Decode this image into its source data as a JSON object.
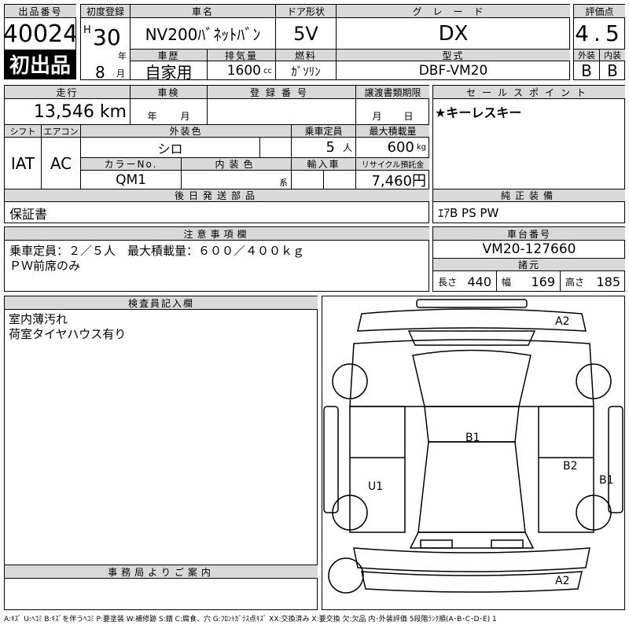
{
  "lot": {
    "label": "出品番号",
    "number": "40024",
    "badge": "初出品"
  },
  "reg": {
    "label": "初度登録",
    "era": "H",
    "year": "30",
    "year_unit": "年",
    "month": "8",
    "month_unit": "月"
  },
  "car_name": {
    "label": "車名",
    "value": "NV200ﾊﾞﾈｯﾄﾊﾞﾝ"
  },
  "door": {
    "label": "ドア形状",
    "value": "5V"
  },
  "grade": {
    "label": "グレード",
    "value": "DX"
  },
  "history": {
    "label": "車歴",
    "value": "自家用"
  },
  "displacement": {
    "label": "排気量",
    "value": "1600",
    "unit": "cc"
  },
  "fuel": {
    "label": "燃料",
    "value": "ｶﾞｿﾘﾝ"
  },
  "model": {
    "label": "型式",
    "value": "DBF-VM20"
  },
  "score": {
    "label": "評価点",
    "value": "4.5",
    "ext_label": "外装",
    "int_label": "内装",
    "ext": "B",
    "int": "B"
  },
  "mileage": {
    "label": "走行",
    "value": "13,546 km"
  },
  "inspection": {
    "label": "車検",
    "year_unit": "年",
    "month_unit": "月"
  },
  "plate": {
    "label": "登録番号"
  },
  "transfer": {
    "label": "譲渡書類期限",
    "month_unit": "月",
    "day_unit": "日"
  },
  "shift": {
    "label": "シフト",
    "value": "IAT"
  },
  "ac": {
    "label": "エアコン",
    "value": "AC"
  },
  "ext_color": {
    "label": "外装色",
    "value": "シロ"
  },
  "capacity": {
    "label": "乗車定員",
    "value": "5",
    "unit": "人"
  },
  "max_load": {
    "label": "最大積載量",
    "value": "600",
    "unit": "kg"
  },
  "color_no": {
    "label": "カラーNo.",
    "value": "QM1"
  },
  "int_color": {
    "label": "内装色",
    "suffix": "系"
  },
  "import": {
    "label": "輸入車"
  },
  "recycle": {
    "label": "リサイクル預託金",
    "value": "7,460円"
  },
  "later_parts": {
    "label": "後日発送部品",
    "value": "保証書"
  },
  "sales_point": {
    "label": "セールスポイント",
    "value": "★キーレスキー"
  },
  "equipment": {
    "label": "純正装備",
    "value": "ｴｱB PS PW"
  },
  "notes": {
    "label": "注意事項欄",
    "lines": [
      "乗車定員：２／５人　最大積載量：６００／４００ｋｇ",
      "ＰＷ前席のみ"
    ]
  },
  "chassis": {
    "label": "車台番号",
    "value": "VM20-127660"
  },
  "specs": {
    "label": "諸元",
    "length_label": "長さ",
    "length": "440",
    "width_label": "幅",
    "width": "169",
    "height_label": "高さ",
    "height": "185"
  },
  "inspector": {
    "label": "検査員記入欄",
    "lines": [
      "室内薄汚れ",
      "荷室タイヤハウス有り"
    ]
  },
  "office": {
    "label": "事務局よりご案内"
  },
  "diagram": {
    "marks": [
      "A2",
      "B1",
      "B2",
      "U1",
      "B1",
      "A2"
    ]
  },
  "legend": "A:ｷｽﾞ U:ﾍｺﾐ B:ｷｽﾞを伴うﾍｺﾐ P:要塗装 W:補修跡 S:錆 C:腐食、穴 G:ﾌﾛﾝﾄｶﾞﾗｽ点ｷｽﾞ XX:交換済み X:要交換 欠:欠品 内･外装評価 5段階ﾗﾝｸ順(A･B･C･D･E) 1"
}
